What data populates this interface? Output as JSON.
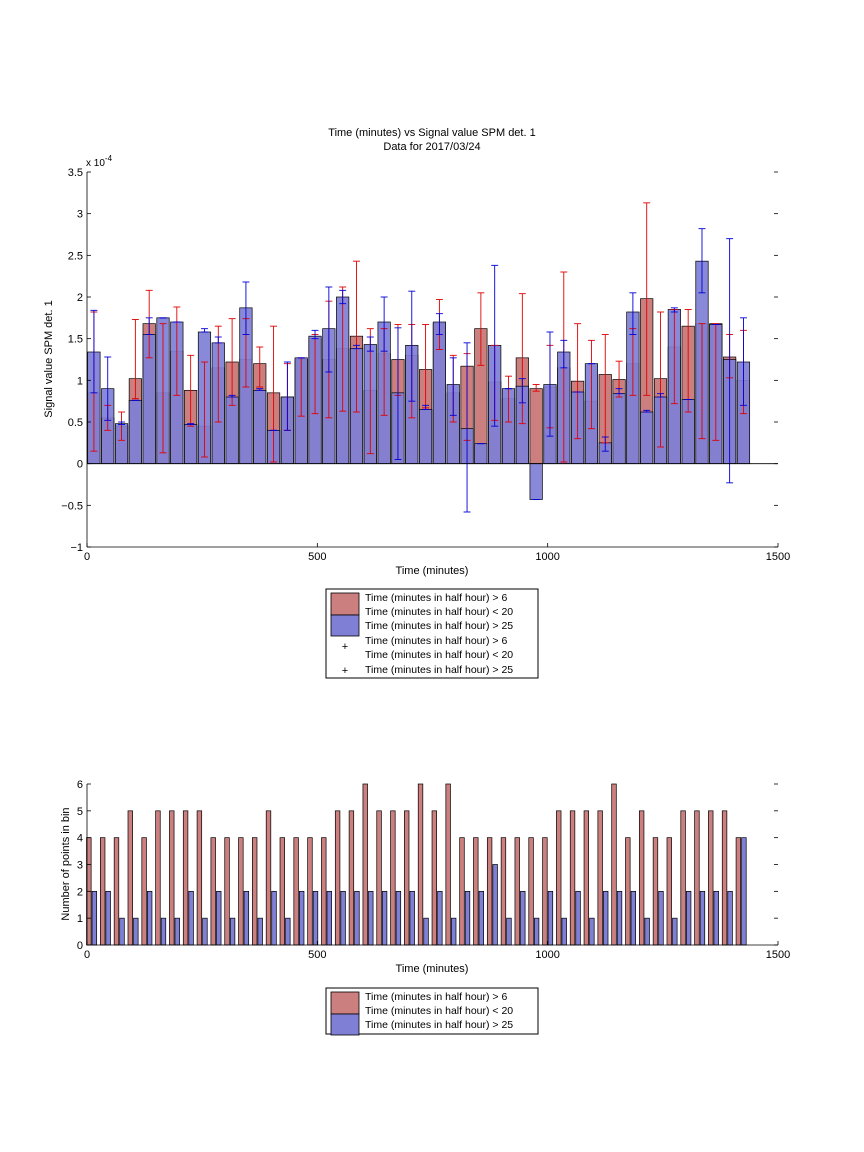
{
  "colors": {
    "red_fill": "#cc7f7f",
    "blue_fill": "#7f7fd6",
    "red_err": "#e00000",
    "blue_err": "#0000d8",
    "axes": "#000000"
  },
  "chart_data": [
    {
      "type": "bar",
      "title": "Time (minutes) vs Signal value SPM det. 1",
      "subtitle": "Data for 2017/03/24",
      "xlabel": "Time (minutes)",
      "ylabel": "Signal value SPM det. 1",
      "y_exponent_label": "x 10",
      "y_exponent_power": "-4",
      "xlim": [
        0,
        1500
      ],
      "ylim": [
        -1,
        3.5
      ],
      "xticks": [
        "0",
        "500",
        "1000",
        "1500"
      ],
      "yticks": [
        "−1",
        "−0.5",
        "0",
        "0.5",
        "1",
        "1.5",
        "2",
        "2.5",
        "3",
        "3.5"
      ],
      "bar_width": 27,
      "x": [
        15,
        45,
        75,
        105,
        135,
        165,
        195,
        225,
        255,
        285,
        315,
        345,
        375,
        405,
        435,
        465,
        495,
        525,
        555,
        585,
        615,
        645,
        675,
        705,
        735,
        765,
        795,
        825,
        855,
        885,
        915,
        945,
        975,
        1005,
        1035,
        1065,
        1095,
        1125,
        1155,
        1185,
        1215,
        1245,
        1275,
        1305,
        1335,
        1365,
        1395,
        1425
      ],
      "legend": [
        "Time (minutes in half hour) > 6",
        "Time (minutes in half hour) < 20",
        "Time (minutes in half hour) > 25",
        "Time (minutes in half hour) > 6",
        "Time (minutes in half hour) < 20",
        "Time (minutes in half hour) > 25"
      ],
      "series": [
        {
          "name": "Time (minutes in half hour) > 6 / Time (minutes in half hour) < 20",
          "color": "red",
          "values": [
            0.85,
            0.55,
            0.45,
            1.02,
            1.68,
            0.85,
            1.35,
            0.88,
            0.45,
            1.15,
            1.22,
            1.25,
            1.2,
            0.85,
            0.8,
            1.25,
            1.5,
            1.25,
            1.38,
            1.53,
            0.88,
            1.32,
            1.25,
            1.3,
            1.13,
            1.68,
            0.85,
            1.17,
            1.62,
            0.98,
            0.78,
            1.27,
            0.9,
            0.92,
            1.15,
            0.99,
            0.75,
            1.07,
            1.01,
            1.2,
            1.98,
            1.02,
            1.4,
            1.65,
            1.68,
            1.68,
            1.28,
            1.0
          ],
          "err_low": [
            0.15,
            0.4,
            0.28,
            0.78,
            1.27,
            0.13,
            0.82,
            0.45,
            0.08,
            0.5,
            0.7,
            0.92,
            0.92,
            0.02,
            0.4,
            0.57,
            0.6,
            0.55,
            0.63,
            0.62,
            0.12,
            0.58,
            0.82,
            0.55,
            0.67,
            1.37,
            0.5,
            0.28,
            1.18,
            0.52,
            0.5,
            0.48,
            0.87,
            0.43,
            0.02,
            0.3,
            0.42,
            0.25,
            0.8,
            0.82,
            0.82,
            0.2,
            0.72,
            0.62,
            0.3,
            0.28,
            1.03,
            0.6
          ],
          "err_high": [
            1.82,
            0.7,
            0.62,
            1.73,
            2.08,
            1.68,
            1.88,
            1.3,
            1.22,
            1.65,
            1.74,
            1.74,
            1.4,
            1.65,
            1.2,
            1.27,
            1.55,
            1.95,
            2.12,
            2.43,
            1.62,
            1.62,
            1.67,
            1.67,
            1.67,
            1.97,
            1.3,
            1.32,
            2.05,
            1.42,
            1.05,
            2.04,
            0.95,
            1.42,
            2.3,
            1.68,
            1.48,
            1.55,
            1.23,
            1.62,
            3.13,
            1.82,
            1.85,
            1.85,
            1.68,
            1.68,
            1.55,
            1.6
          ]
        },
        {
          "name": "Time (minutes in half hour) > 25",
          "color": "blue",
          "values": [
            1.34,
            0.9,
            0.48,
            0.76,
            1.55,
            1.75,
            1.7,
            0.47,
            1.58,
            1.45,
            0.8,
            1.87,
            0.88,
            0.4,
            0.8,
            1.27,
            1.53,
            1.62,
            2.0,
            1.38,
            1.43,
            1.7,
            0.85,
            1.42,
            0.65,
            1.7,
            0.95,
            0.42,
            0.24,
            1.42,
            0.9,
            0.93,
            -0.43,
            0.95,
            1.34,
            0.86,
            1.2,
            0.25,
            0.84,
            1.82,
            0.62,
            0.8,
            1.85,
            0.77,
            2.43,
            1.67,
            1.25,
            1.22
          ],
          "err_low": [
            0.85,
            0.52,
            0.47,
            0.76,
            1.55,
            1.75,
            1.7,
            0.47,
            1.58,
            1.45,
            0.8,
            1.55,
            0.88,
            0.4,
            0.4,
            1.27,
            1.5,
            1.1,
            1.92,
            1.38,
            1.35,
            1.35,
            0.05,
            0.75,
            0.65,
            1.55,
            0.58,
            -0.58,
            0.24,
            0.45,
            0.9,
            0.73,
            -0.43,
            0.33,
            1.15,
            0.86,
            1.2,
            0.15,
            0.84,
            1.55,
            0.62,
            0.8,
            1.82,
            0.77,
            2.05,
            1.67,
            -0.23,
            0.7
          ],
          "err_high": [
            1.84,
            1.28,
            0.5,
            0.76,
            1.75,
            1.75,
            1.7,
            0.48,
            1.62,
            1.52,
            0.82,
            2.18,
            0.9,
            0.4,
            1.22,
            1.27,
            1.6,
            2.12,
            2.08,
            1.42,
            1.52,
            2.0,
            1.63,
            2.07,
            0.7,
            1.8,
            1.27,
            1.45,
            0.24,
            2.38,
            0.9,
            1.02,
            -0.43,
            1.58,
            1.48,
            0.86,
            1.2,
            0.32,
            0.9,
            2.05,
            0.64,
            0.84,
            1.87,
            0.77,
            2.82,
            1.67,
            2.7,
            1.75
          ]
        }
      ]
    },
    {
      "type": "bar",
      "title": "",
      "xlabel": "Time (minutes)",
      "ylabel": "Number of points in bin",
      "xlim": [
        0,
        1500
      ],
      "ylim": [
        0,
        6
      ],
      "xticks": [
        "0",
        "500",
        "1000",
        "1500"
      ],
      "yticks": [
        "0",
        "1",
        "2",
        "3",
        "4",
        "5",
        "6"
      ],
      "bar_width": 10,
      "legend": [
        "Time (minutes in half hour) > 6",
        "Time (minutes in half hour) < 20",
        "Time (minutes in half hour) > 25"
      ],
      "series": [
        {
          "name": "Time (minutes in half hour) > 6 / Time (minutes in half hour) < 20",
          "color": "red",
          "x": [
            4,
            34,
            64,
            94,
            124,
            154,
            184,
            214,
            244,
            274,
            304,
            334,
            364,
            394,
            424,
            454,
            484,
            514,
            544,
            574,
            604,
            634,
            664,
            694,
            724,
            754,
            784,
            814,
            844,
            874,
            904,
            934,
            964,
            994,
            1024,
            1054,
            1084,
            1114,
            1144,
            1174,
            1204,
            1234,
            1264,
            1294,
            1324,
            1354,
            1384,
            1414
          ],
          "values": [
            4,
            4,
            4,
            5,
            4,
            5,
            5,
            5,
            5,
            4,
            4,
            4,
            4,
            5,
            4,
            4,
            4,
            4,
            5,
            5,
            6,
            5,
            5,
            5,
            6,
            5,
            6,
            4,
            4,
            4,
            4,
            4,
            4,
            4,
            5,
            5,
            5,
            5,
            6,
            4,
            5,
            4,
            4,
            5,
            5,
            5,
            5,
            4
          ]
        },
        {
          "name": "Time (minutes in half hour) > 25",
          "color": "blue",
          "x": [
            16,
            46,
            76,
            106,
            136,
            166,
            196,
            226,
            256,
            286,
            316,
            346,
            376,
            406,
            436,
            466,
            496,
            526,
            556,
            586,
            616,
            646,
            676,
            706,
            736,
            766,
            796,
            826,
            856,
            886,
            916,
            946,
            976,
            1006,
            1036,
            1066,
            1096,
            1126,
            1156,
            1186,
            1216,
            1246,
            1276,
            1306,
            1336,
            1366,
            1396,
            1426
          ],
          "values": [
            2,
            2,
            1,
            1,
            2,
            1,
            1,
            2,
            1,
            2,
            1,
            2,
            1,
            2,
            1,
            2,
            2,
            2,
            2,
            2,
            2,
            2,
            2,
            2,
            1,
            2,
            1,
            2,
            2,
            3,
            1,
            2,
            1,
            2,
            1,
            2,
            1,
            2,
            2,
            2,
            1,
            2,
            1,
            2,
            2,
            2,
            2,
            4
          ]
        }
      ]
    }
  ]
}
